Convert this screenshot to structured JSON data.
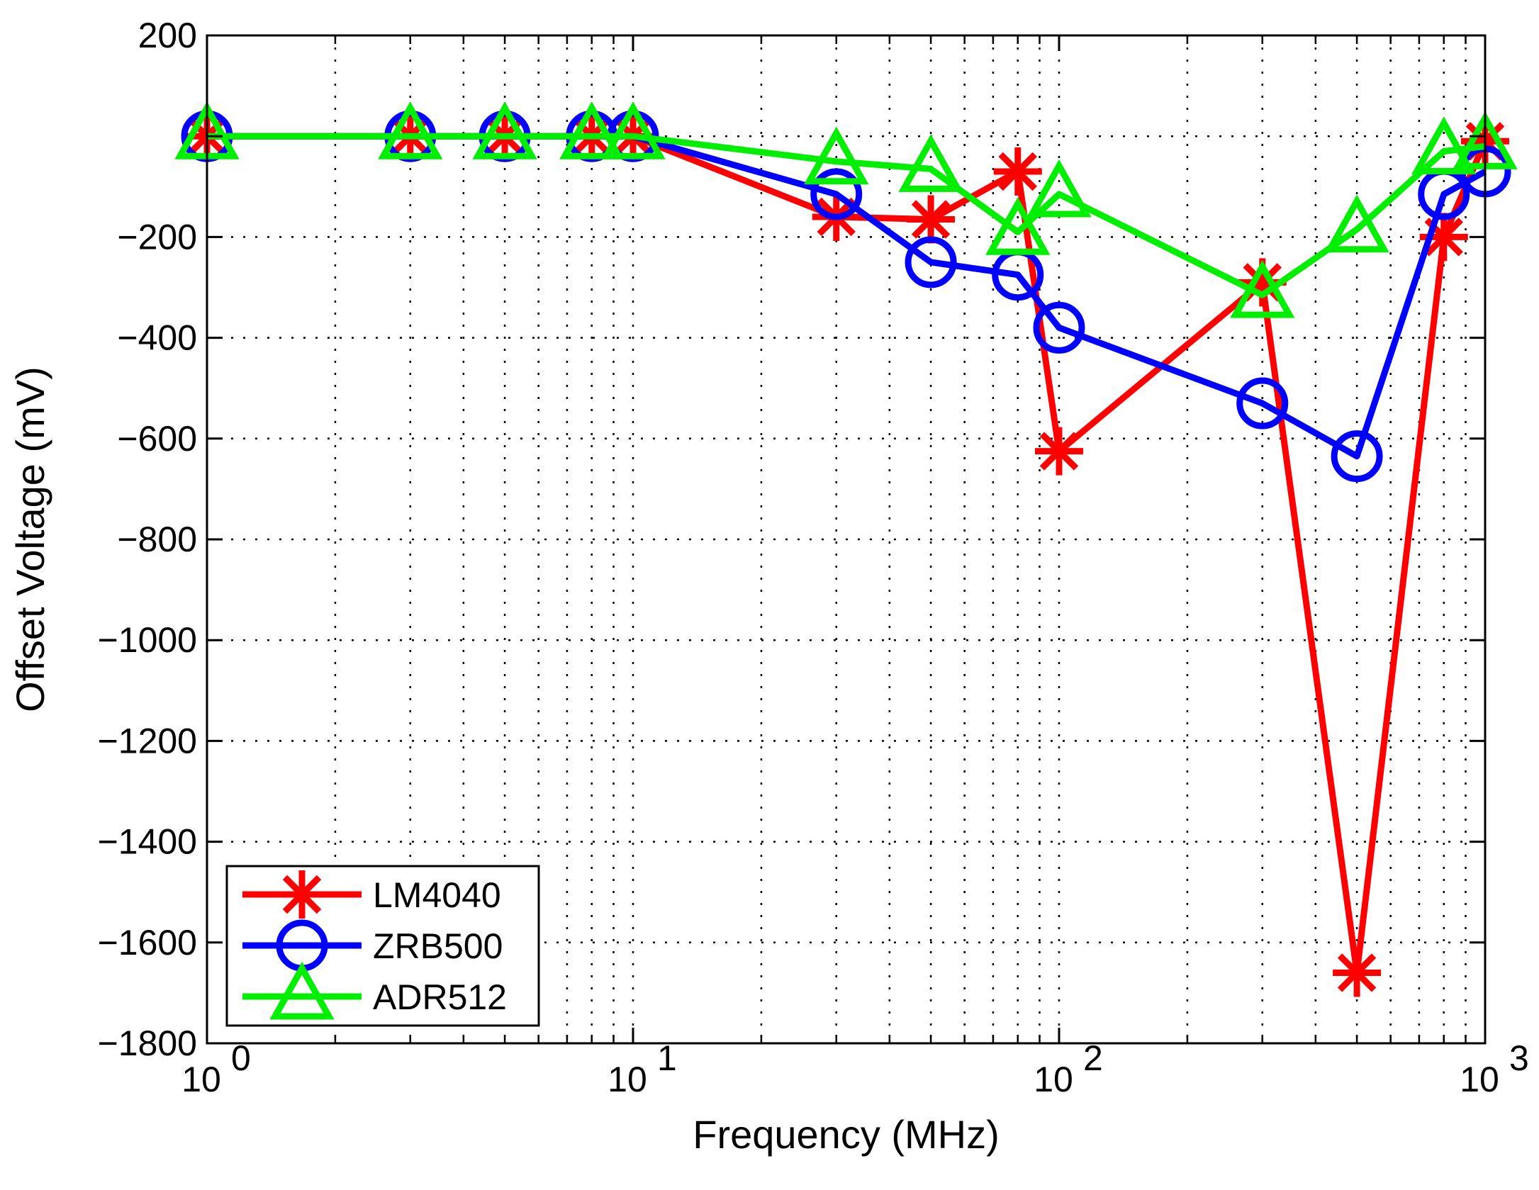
{
  "chart_data": {
    "type": "line",
    "title": "",
    "xlabel": "Frequency (MHz)",
    "ylabel": "Offset Voltage (mV)",
    "x_scale": "log",
    "xlim": [
      1,
      1000
    ],
    "ylim": [
      -1800,
      200
    ],
    "x_ticks": [
      1,
      10,
      100,
      1000
    ],
    "x_tick_labels": [
      {
        "base": "10",
        "exp": "0"
      },
      {
        "base": "10",
        "exp": "1"
      },
      {
        "base": "10",
        "exp": "2"
      },
      {
        "base": "10",
        "exp": "3"
      }
    ],
    "y_ticks": [
      200,
      0,
      -200,
      -400,
      -600,
      -800,
      -1000,
      -1200,
      -1400,
      -1600,
      -1800
    ],
    "y_tick_labels": [
      "200",
      "",
      "−200",
      "−400",
      "−600",
      "−800",
      "−1000",
      "−1200",
      "−1400",
      "−1600",
      "−1800"
    ],
    "grid": true,
    "legend_position": "bottom-left",
    "series": [
      {
        "name": "LM4040",
        "color": "#ff0000",
        "marker": "asterisk",
        "x": [
          1,
          3,
          5,
          8,
          10,
          30,
          50,
          80,
          100,
          300,
          500,
          800,
          1000
        ],
        "y": [
          0,
          0,
          0,
          0,
          0,
          -160,
          -165,
          -70,
          -625,
          -290,
          -1660,
          -200,
          -10
        ]
      },
      {
        "name": "ZRB500",
        "color": "#0000ff",
        "marker": "circle",
        "x": [
          1,
          3,
          5,
          8,
          10,
          30,
          50,
          80,
          100,
          300,
          500,
          800,
          1000
        ],
        "y": [
          0,
          0,
          0,
          0,
          0,
          -115,
          -250,
          -275,
          -380,
          -530,
          -635,
          -115,
          -70
        ]
      },
      {
        "name": "ADR512",
        "color": "#00ee00",
        "marker": "triangle",
        "x": [
          1,
          3,
          5,
          8,
          10,
          30,
          50,
          80,
          100,
          300,
          500,
          800,
          1000
        ],
        "y": [
          0,
          0,
          0,
          0,
          0,
          -50,
          -65,
          -190,
          -115,
          -315,
          -185,
          -30,
          -20
        ]
      }
    ]
  }
}
